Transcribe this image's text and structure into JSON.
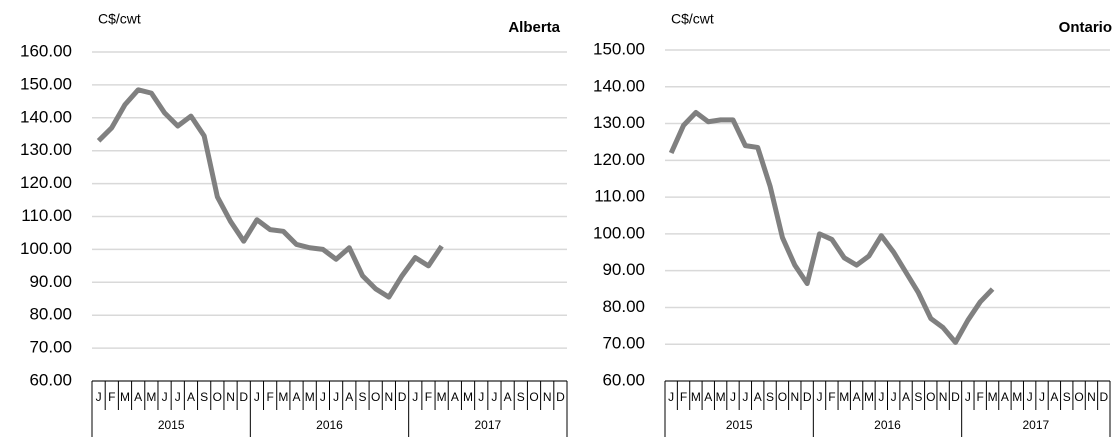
{
  "chart_data": [
    {
      "type": "line",
      "title": "Alberta",
      "unit_label": "C$/cwt",
      "categories": [
        "J",
        "F",
        "M",
        "A",
        "M",
        "J",
        "J",
        "A",
        "S",
        "O",
        "N",
        "D",
        "J",
        "F",
        "M",
        "A",
        "M",
        "J",
        "J",
        "A",
        "S",
        "O",
        "N",
        "D",
        "J",
        "F",
        "M",
        "A",
        "M",
        "J",
        "J",
        "A",
        "S",
        "O",
        "N",
        "D"
      ],
      "groups": [
        "2015",
        "2016",
        "2017"
      ],
      "series": [
        {
          "color": "#808080",
          "values": [
            133,
            137,
            144,
            148.5,
            147.5,
            141.5,
            137.5,
            140.5,
            134.5,
            116,
            108.5,
            102.5,
            109,
            106,
            105.5,
            101.5,
            100.5,
            100,
            97,
            100.5,
            92,
            88,
            85.5,
            92,
            97.5,
            95,
            101,
            null,
            null,
            null,
            null,
            null,
            null,
            null,
            null,
            null
          ]
        }
      ],
      "ylim": [
        60,
        160
      ],
      "yticks": [
        {
          "value": 60,
          "label": "60.00"
        },
        {
          "value": 70,
          "label": "70.00"
        },
        {
          "value": 80,
          "label": "80.00"
        },
        {
          "value": 90,
          "label": "90.00"
        },
        {
          "value": 100,
          "label": "100.00"
        },
        {
          "value": 110,
          "label": "110.00"
        },
        {
          "value": 120,
          "label": "120.00"
        },
        {
          "value": 130,
          "label": "130.00"
        },
        {
          "value": 140,
          "label": "140.00"
        },
        {
          "value": 150,
          "label": "150.00"
        },
        {
          "value": 160,
          "label": "160.00"
        }
      ],
      "grid": true
    },
    {
      "type": "line",
      "title": "Ontario",
      "unit_label": "C$/cwt",
      "categories": [
        "J",
        "F",
        "M",
        "A",
        "M",
        "J",
        "J",
        "A",
        "S",
        "O",
        "N",
        "D",
        "J",
        "F",
        "M",
        "A",
        "M",
        "J",
        "J",
        "A",
        "S",
        "O",
        "N",
        "D",
        "J",
        "F",
        "M",
        "A",
        "M",
        "J",
        "J",
        "A",
        "S",
        "O",
        "N",
        "D"
      ],
      "groups": [
        "2015",
        "2016",
        "2017"
      ],
      "series": [
        {
          "color": "#808080",
          "values": [
            122,
            129.5,
            133,
            130.5,
            131,
            131,
            124,
            123.5,
            113,
            99,
            91.5,
            86.5,
            100,
            98.5,
            93.5,
            91.5,
            94,
            99.5,
            95,
            89.5,
            84,
            77,
            74.5,
            70.5,
            76.5,
            81.5,
            85,
            null,
            null,
            null,
            null,
            null,
            null,
            null,
            null,
            null
          ]
        }
      ],
      "ylim": [
        60,
        150
      ],
      "yticks": [
        {
          "value": 60,
          "label": "60.00"
        },
        {
          "value": 70,
          "label": "70.00"
        },
        {
          "value": 80,
          "label": "80.00"
        },
        {
          "value": 90,
          "label": "90.00"
        },
        {
          "value": 100,
          "label": "100.00"
        },
        {
          "value": 110,
          "label": "110.00"
        },
        {
          "value": 120,
          "label": "120.00"
        },
        {
          "value": 130,
          "label": "130.00"
        },
        {
          "value": 140,
          "label": "140.00"
        },
        {
          "value": 150,
          "label": "150.00"
        }
      ],
      "grid": true
    }
  ]
}
